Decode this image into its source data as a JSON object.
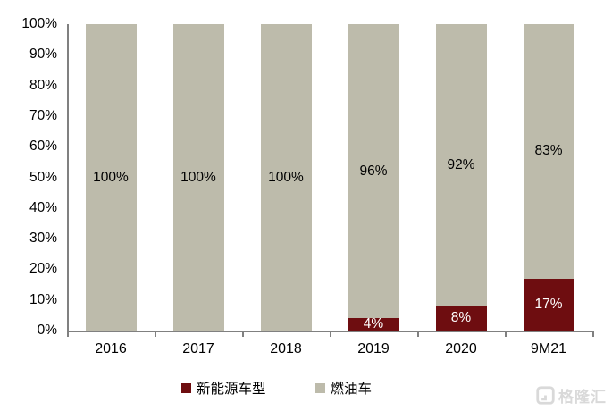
{
  "chart_data": {
    "type": "bar",
    "stacked": true,
    "percent_stacked": true,
    "categories": [
      "2016",
      "2017",
      "2018",
      "2019",
      "2020",
      "9M21"
    ],
    "series": [
      {
        "name": "新能源车型",
        "color": "#6E0D10",
        "label_color": "#FFFFFF",
        "values": [
          0,
          0,
          0,
          4,
          8,
          17
        ],
        "labels": [
          "",
          "",
          "",
          "4%",
          "8%",
          "17%"
        ]
      },
      {
        "name": "燃油车",
        "color": "#BDBBAB",
        "label_color": "#000000",
        "values": [
          100,
          100,
          100,
          96,
          92,
          83
        ],
        "labels": [
          "100%",
          "100%",
          "100%",
          "96%",
          "92%",
          "83%"
        ]
      }
    ],
    "title": "",
    "xlabel": "",
    "ylabel": "",
    "ylim": [
      0,
      100
    ],
    "y_tick_labels": [
      "100%",
      "90%",
      "80%",
      "70%",
      "60%",
      "50%",
      "40%",
      "30%",
      "20%",
      "10%",
      "0%"
    ],
    "grid": false,
    "legend_position": "bottom",
    "axis_color": "#808080"
  },
  "watermark": {
    "text": "格隆汇",
    "icon_color": "#d9d9d9"
  }
}
